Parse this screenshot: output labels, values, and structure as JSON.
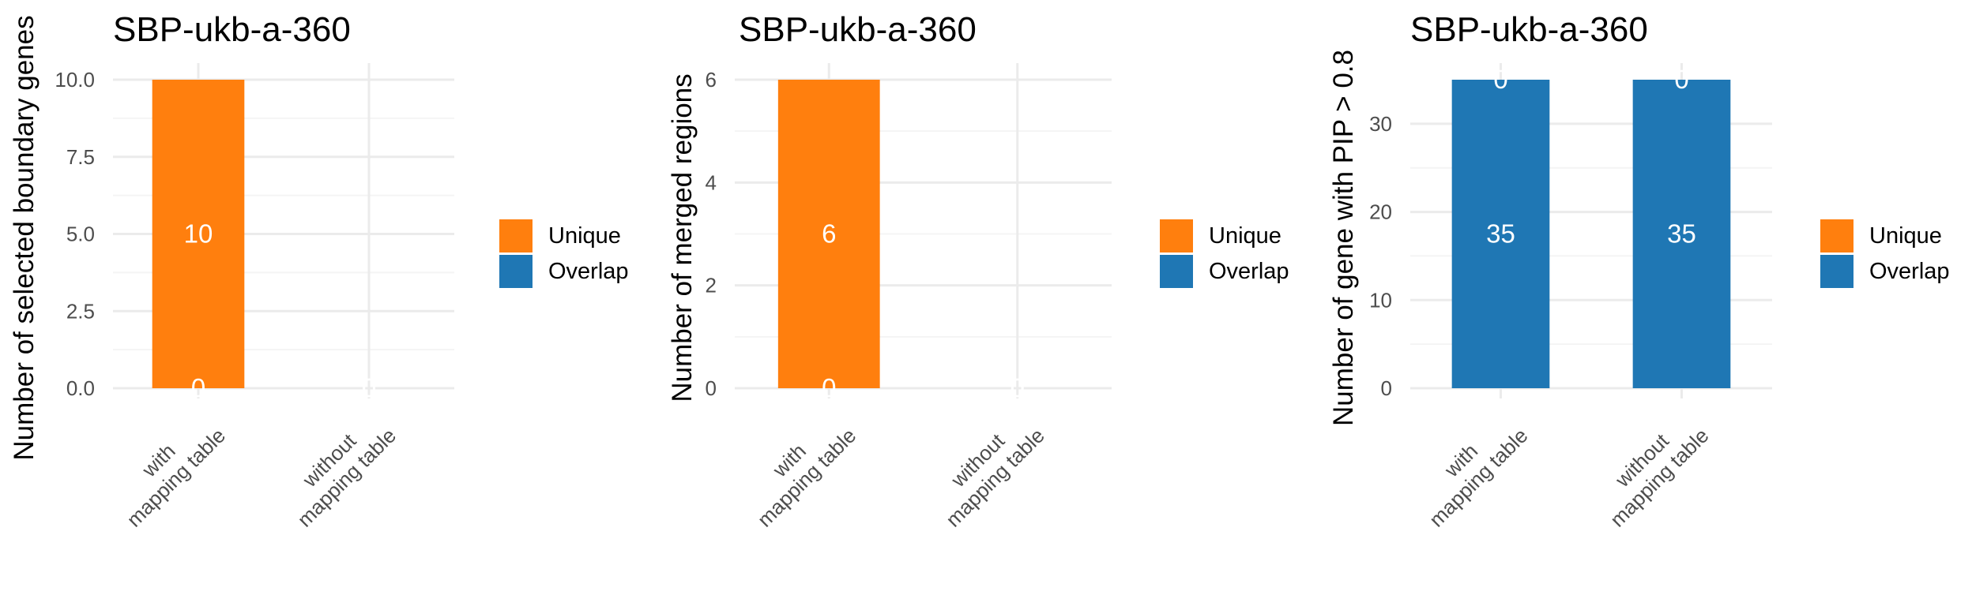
{
  "figure": {
    "colors": {
      "unique": "#ff7f0e",
      "overlap": "#1f77b4",
      "grid_major": "#ebebeb",
      "grid_minor": "#f4f4f4",
      "text": "#000000",
      "tick_text": "#4d4d4d",
      "bar_label": "#ffffff"
    }
  },
  "chart_data": [
    {
      "type": "bar",
      "stacked": true,
      "title": "SBP-ukb-a-360",
      "xlabel": "",
      "ylabel": "Number of selected boundary genes",
      "categories": [
        "with\nmapping table",
        "without\nmapping table"
      ],
      "series": [
        {
          "name": "Unique",
          "color": "#ff7f0e",
          "values": [
            10,
            0
          ]
        },
        {
          "name": "Overlap",
          "color": "#1f77b4",
          "values": [
            0,
            0
          ]
        }
      ],
      "data_labels": [
        [
          "10",
          "0"
        ],
        [
          "0",
          "0"
        ]
      ],
      "ylim": [
        0,
        10
      ],
      "yticks": [
        0,
        2.5,
        5,
        7.5,
        10
      ],
      "ytick_labels": [
        "0.0",
        "2.5",
        "5.0",
        "7.5",
        "10.0"
      ],
      "legend": [
        "Unique",
        "Overlap"
      ],
      "legend_position": "right"
    },
    {
      "type": "bar",
      "stacked": true,
      "title": "SBP-ukb-a-360",
      "xlabel": "",
      "ylabel": "Number of merged regions",
      "categories": [
        "with\nmapping table",
        "without\nmapping table"
      ],
      "series": [
        {
          "name": "Unique",
          "color": "#ff7f0e",
          "values": [
            6,
            0
          ]
        },
        {
          "name": "Overlap",
          "color": "#1f77b4",
          "values": [
            0,
            0
          ]
        }
      ],
      "data_labels": [
        [
          "6",
          "0"
        ],
        [
          "0",
          "0"
        ]
      ],
      "ylim": [
        0,
        6
      ],
      "yticks": [
        0,
        2,
        4,
        6
      ],
      "ytick_labels": [
        "0",
        "2",
        "4",
        "6"
      ],
      "legend": [
        "Unique",
        "Overlap"
      ],
      "legend_position": "right"
    },
    {
      "type": "bar",
      "stacked": true,
      "title": "SBP-ukb-a-360",
      "xlabel": "",
      "ylabel": "Number of gene with PIP > 0.8",
      "categories": [
        "with\nmapping table",
        "without\nmapping table"
      ],
      "series": [
        {
          "name": "Unique",
          "color": "#ff7f0e",
          "values": [
            0,
            0
          ]
        },
        {
          "name": "Overlap",
          "color": "#1f77b4",
          "values": [
            35,
            35
          ]
        }
      ],
      "data_labels": [
        [
          "0",
          "0"
        ],
        [
          "35",
          "35"
        ]
      ],
      "ylim": [
        0,
        35
      ],
      "yticks": [
        0,
        10,
        20,
        30
      ],
      "ytick_labels": [
        "0",
        "10",
        "20",
        "30"
      ],
      "legend": [
        "Unique",
        "Overlap"
      ],
      "legend_position": "right"
    }
  ]
}
